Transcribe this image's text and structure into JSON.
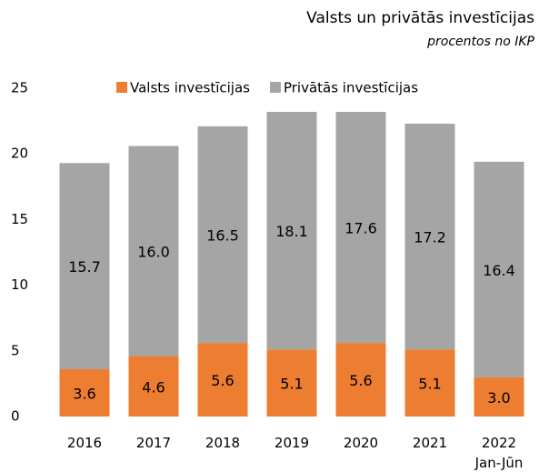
{
  "chart_data": {
    "type": "stacked_bar",
    "title": "Valsts un privātās investīcijas",
    "subtitle": "procentos no IKP",
    "categories": [
      "2016",
      "2017",
      "2018",
      "2019",
      "2020",
      "2021",
      "2022\nJan-Jūn"
    ],
    "series": [
      {
        "name": "Valsts investīcijas",
        "color": "#ed7d31",
        "values": [
          3.6,
          4.6,
          5.6,
          5.1,
          5.6,
          5.1,
          3.0
        ],
        "value_labels": [
          "3.6",
          "4.6",
          "5.6",
          "5.1",
          "5.6",
          "5.1",
          "3.0"
        ]
      },
      {
        "name": "Privātās investīcijas",
        "color": "#a5a5a5",
        "values": [
          15.7,
          16.0,
          16.5,
          18.1,
          17.6,
          17.2,
          16.4
        ],
        "value_labels": [
          "15.7",
          "16.0",
          "16.5",
          "18.1",
          "17.6",
          "17.2",
          "16.4"
        ]
      }
    ],
    "ylim": [
      0,
      25
    ],
    "yticks": [
      0,
      5,
      10,
      15,
      20,
      25
    ],
    "grid": false,
    "legend": "top"
  }
}
